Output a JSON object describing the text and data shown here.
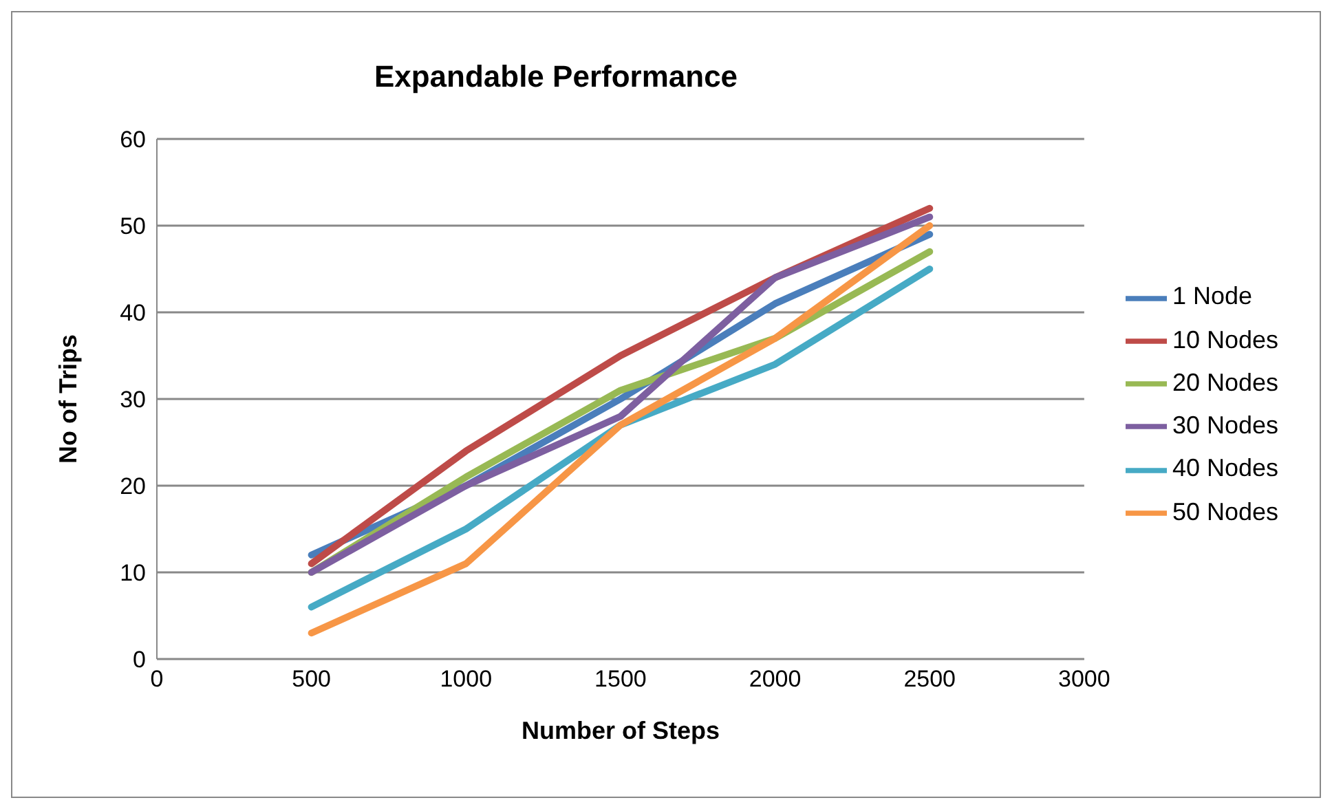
{
  "chart_data": {
    "type": "line",
    "title": "Expandable Performance",
    "xlabel": "Number of Steps",
    "ylabel": "No of  Trips",
    "x": [
      500,
      1000,
      1500,
      2000,
      2500
    ],
    "xlim": [
      0,
      3000
    ],
    "xticks": [
      0,
      500,
      1000,
      1500,
      2000,
      2500,
      3000
    ],
    "ylim": [
      0,
      60
    ],
    "yticks": [
      0,
      10,
      20,
      30,
      40,
      50,
      60
    ],
    "grid": "y",
    "legend": "right",
    "marker": "none",
    "line_style": "solid",
    "series": [
      {
        "name": "1 Node",
        "color": "#4a7ebb",
        "values": [
          12,
          20,
          30,
          41,
          49
        ]
      },
      {
        "name": "10 Nodes",
        "color": "#be4b48",
        "values": [
          11,
          24,
          35,
          44,
          52
        ]
      },
      {
        "name": "20 Nodes",
        "color": "#98b954",
        "values": [
          10,
          21,
          31,
          37,
          47
        ]
      },
      {
        "name": "30 Nodes",
        "color": "#7d5fa0",
        "values": [
          10,
          20,
          28,
          44,
          51
        ]
      },
      {
        "name": "40 Nodes",
        "color": "#46aac5",
        "values": [
          6,
          15,
          27,
          34,
          45
        ]
      },
      {
        "name": "50 Nodes",
        "color": "#f79646",
        "values": [
          3,
          11,
          27,
          37,
          50
        ]
      }
    ]
  }
}
